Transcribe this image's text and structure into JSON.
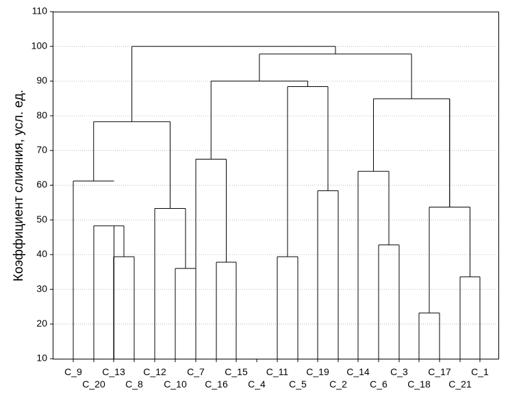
{
  "chart_data": {
    "type": "dendrogram",
    "ylabel": "Коэффициент слияния, усл. ед.",
    "ylim": [
      10,
      110
    ],
    "yticks": [
      10,
      20,
      30,
      40,
      50,
      60,
      70,
      80,
      90,
      100,
      110
    ],
    "grid": true,
    "leaves": [
      "C_9",
      "C_20",
      "C_13",
      "C_8",
      "C_12",
      "C_10",
      "C_7",
      "C_16",
      "C_15",
      "C_4",
      "C_11",
      "C_5",
      "C_19",
      "C_2",
      "C_14",
      "C_6",
      "C_3",
      "C_18",
      "C_17",
      "C_21",
      "C_1"
    ],
    "merges": [
      {
        "left": "C_13",
        "right": "C_8",
        "height": 39.4
      },
      {
        "left": "C_20",
        "right": "M1",
        "height": 48.3
      },
      {
        "left": "C_9",
        "right": "M2",
        "height": 61.2
      },
      {
        "left": "C_7",
        "right": "C_16",
        "height": 36.0
      },
      {
        "left": "C_12",
        "right": "C_10",
        "height": 53.3
      },
      {
        "left": "M5",
        "right": "M4",
        "height": 53.3,
        "note": "same junction"
      },
      {
        "left": "M3",
        "right": "M6",
        "height": 78.3
      },
      {
        "left": "C_15",
        "right": "C_4",
        "height": 37.8
      },
      {
        "left": "C_16",
        "right": "M8",
        "height": 67.5
      },
      {
        "left": "C_11",
        "right": "C_5",
        "height": 39.4
      },
      {
        "left": "C_19",
        "right": "C_2",
        "height": 58.4
      },
      {
        "left": "M10",
        "right": "M11",
        "height": 88.4
      },
      {
        "left": "M9",
        "right": "M12",
        "height": 90.0
      },
      {
        "left": "C_3",
        "right": "C_18",
        "height": 42.8
      },
      {
        "left": "C_14",
        "right": "M14",
        "height": 64.0
      },
      {
        "left": "C_17",
        "right": "C_21",
        "height": 23.2
      },
      {
        "left": "C_21",
        "right": "C_1",
        "height": 33.6
      },
      {
        "left": "M16",
        "right": "M17",
        "height": 53.7
      },
      {
        "left": "M15",
        "right": "M18",
        "height": 84.9
      },
      {
        "left": "M13",
        "right": "M19",
        "height": 97.8
      },
      {
        "left": "M7",
        "right": "M20",
        "height": 100.0
      }
    ]
  }
}
